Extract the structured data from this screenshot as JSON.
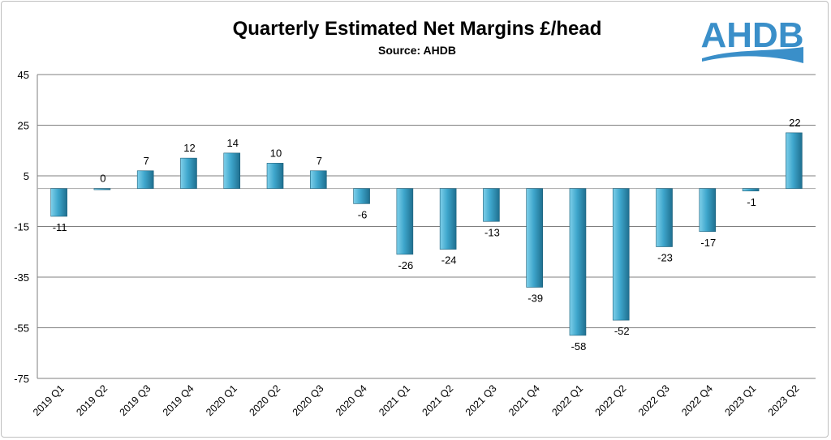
{
  "colors": {
    "bar_light": "#7fd0ea",
    "bar_mid": "#3ea6cc",
    "bar_dark": "#1f6f8f",
    "grid": "#7f7f7f",
    "logo": "#3a8fc9"
  },
  "logo": {
    "text": "AHDB"
  },
  "chart_data": {
    "type": "bar",
    "title": "Quarterly Estimated Net Margins £/head",
    "subtitle": "Source: AHDB",
    "xlabel": "",
    "ylabel": "",
    "ylim": [
      -75,
      45
    ],
    "yticks": [
      45,
      25,
      5,
      -15,
      -35,
      -55,
      -75
    ],
    "grid": true,
    "legend": "none",
    "categories": [
      "2019 Q1",
      "2019 Q2",
      "2019 Q3",
      "2019 Q4",
      "2020 Q1",
      "2020 Q2",
      "2020 Q3",
      "2020 Q4",
      "2021 Q1",
      "2021 Q2",
      "2021 Q3",
      "2021 Q4",
      "2022 Q1",
      "2022 Q2",
      "2022 Q3",
      "2022 Q4",
      "2023 Q1",
      "2023 Q2"
    ],
    "values": [
      -11,
      0,
      7,
      12,
      14,
      10,
      7,
      -6,
      -26,
      -24,
      -13,
      -39,
      -58,
      -52,
      -23,
      -17,
      -1,
      22
    ]
  }
}
